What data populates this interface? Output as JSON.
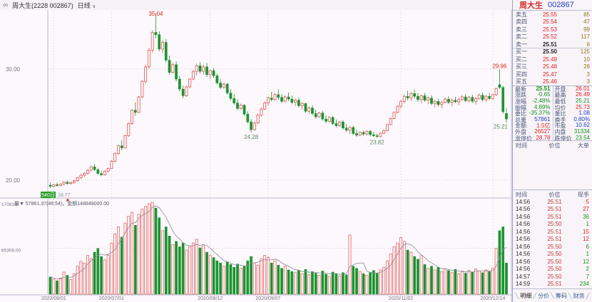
{
  "title_bar": {
    "logo_glyph": "∞",
    "title": "周大生(2228 002867)",
    "period": "日线",
    "caret": "∨"
  },
  "panel": {
    "stock_name": "周大生",
    "stock_code": "002867",
    "asks": [
      {
        "label": "卖五",
        "price": "25.55",
        "vol": "85",
        "pc": "r"
      },
      {
        "label": "卖四",
        "price": "25.54",
        "vol": "47",
        "pc": "r"
      },
      {
        "label": "卖三",
        "price": "25.53",
        "vol": "99",
        "pc": "r"
      },
      {
        "label": "卖二",
        "price": "25.52",
        "vol": "117",
        "pc": "r"
      },
      {
        "label": "卖一",
        "price": "25.51",
        "vol": "6",
        "pc": "k"
      }
    ],
    "bids": [
      {
        "label": "买一",
        "price": "25.50",
        "vol": "125",
        "pc": "k"
      },
      {
        "label": "买二",
        "price": "25.49",
        "vol": "10",
        "pc": "r"
      },
      {
        "label": "买三",
        "price": "25.48",
        "vol": "28",
        "pc": "r"
      },
      {
        "label": "买四",
        "price": "25.47",
        "vol": "3",
        "pc": "r"
      },
      {
        "label": "买五",
        "price": "25.46",
        "vol": "3",
        "pc": "r"
      }
    ],
    "info": [
      {
        "l": "最新",
        "v": "25.51",
        "c": "g bold",
        "l2": "开盘",
        "v2": "26.01",
        "c2": "r"
      },
      {
        "l": "涨跌",
        "v": "-0.65",
        "c": "g",
        "l2": "最高",
        "v2": "26.49",
        "c2": "r"
      },
      {
        "l": "涨幅",
        "v": "-2.48%",
        "c": "g",
        "l2": "最低",
        "v2": "25.21",
        "c2": "g"
      },
      {
        "l": "振幅",
        "v": "4.89%",
        "c": "g",
        "l2": "均价",
        "v2": "25.73",
        "c2": "r"
      },
      {
        "l": "委比",
        "v": "-35.37%",
        "c": "g",
        "l2": "量比",
        "v2": "1.08",
        "c2": "b"
      },
      {
        "l": "总量",
        "v": "57861",
        "c": "b",
        "l2": "换手",
        "v2": "0.80%",
        "c2": "b"
      },
      {
        "l": "金额",
        "v": "1.5亿",
        "c": "r",
        "l2": "市盈",
        "v2": "10.62",
        "c2": "b"
      },
      {
        "l": "外盘",
        "v": "26527",
        "c": "r",
        "l2": "内盘",
        "v2": "31334",
        "c2": "g"
      },
      {
        "l": "涨停价",
        "v": "28.78",
        "c": "r",
        "l2": "跌停价",
        "v2": "23.54",
        "c2": "g"
      }
    ],
    "big_order_header": {
      "c1": "时间",
      "c2": "价位",
      "c3": "大单"
    },
    "tick_header": {
      "c1": "时间",
      "c2": "价位",
      "c3": "现手"
    },
    "ticks": [
      {
        "time": "14:56",
        "price": "25.51",
        "lots": "5",
        "side": "r"
      },
      {
        "time": "14:56",
        "price": "25.51",
        "lots": "27",
        "side": "r"
      },
      {
        "time": "14:56",
        "price": "25.51",
        "lots": "36",
        "side": "g"
      },
      {
        "time": "14:56",
        "price": "25.50",
        "lots": "1",
        "side": "g"
      },
      {
        "time": "14:56",
        "price": "25.51",
        "lots": "15",
        "side": "r"
      },
      {
        "time": "14:56",
        "price": "25.51",
        "lots": "12",
        "side": "r"
      },
      {
        "time": "14:56",
        "price": "25.50",
        "lots": "6",
        "side": "g"
      },
      {
        "time": "14:56",
        "price": "25.50",
        "lots": "1",
        "side": "g"
      },
      {
        "time": "14:56",
        "price": "25.50",
        "lots": "12",
        "side": "g"
      },
      {
        "time": "14:56",
        "price": "25.50",
        "lots": "2",
        "side": "g"
      },
      {
        "time": "14:57",
        "price": "25.50",
        "lots": "7",
        "side": "g"
      },
      {
        "time": "14:59",
        "price": "25.51",
        "lots": "234",
        "side": "g"
      }
    ],
    "tabs": [
      "明细",
      "分价",
      "筹码",
      "财务"
    ]
  },
  "chart": {
    "k_axis_labels": [
      {
        "price": 30,
        "text": "30.00"
      },
      {
        "price": 20,
        "text": "20.00"
      }
    ],
    "vol_axis_labels": [
      {
        "frac": 1.0,
        "text": "170616"
      },
      {
        "frac": 0.5,
        "text": "85308.00"
      }
    ],
    "vol_pane_header": "量▼ 57861.37(46:54)，金额148848000.00",
    "hist_low_badge": "540日",
    "hist_low_value": "18.77",
    "x_axis": [
      {
        "index": 1,
        "label": "2020/06/01"
      },
      {
        "index": 18,
        "label": "2020/07/01"
      },
      {
        "index": 47,
        "label": "2020/08/12"
      },
      {
        "index": 64,
        "label": "2020/09/07"
      },
      {
        "index": 103,
        "label": "2020/11/02"
      },
      {
        "index": 130,
        "label": "2020/12/14"
      }
    ],
    "annotations": [
      {
        "index": 31,
        "text": "35.04",
        "type": "high"
      },
      {
        "index": 132,
        "text": "29.96",
        "type": "high"
      },
      {
        "index": 59,
        "text": "24.28",
        "type": "low"
      },
      {
        "index": 96,
        "text": "23.82",
        "type": "low"
      },
      {
        "index": 134,
        "text": "25.21",
        "type": "low"
      }
    ],
    "colors": {
      "up": "#e05a5a",
      "down": "#1d9331",
      "high_label": "#e02020",
      "low_label": "#5a8a5a",
      "grid": "#dcc3d6",
      "axis_text": "#777788",
      "ma_line": "#8a8a9a",
      "border": "#b9b9cf"
    }
  },
  "chart_data": {
    "type": "candlestick_with_volume",
    "title": "周大生 002867 日线",
    "price_axis": {
      "labeled_ticks": [
        30.0,
        20.0
      ]
    },
    "volume_axis": {
      "labeled_ticks": [
        170616,
        85308
      ]
    },
    "candles": [
      [
        19.55,
        19.8,
        19.3,
        19.45
      ],
      [
        19.45,
        19.65,
        19.35,
        19.6
      ],
      [
        19.6,
        19.78,
        19.42,
        19.52
      ],
      [
        19.52,
        19.72,
        19.45,
        19.66
      ],
      [
        19.66,
        19.92,
        19.55,
        19.82
      ],
      [
        19.82,
        19.96,
        19.6,
        19.7
      ],
      [
        19.7,
        19.88,
        19.58,
        19.8
      ],
      [
        19.8,
        20.05,
        19.68,
        19.95
      ],
      [
        19.95,
        20.3,
        19.88,
        20.22
      ],
      [
        20.22,
        20.55,
        20.1,
        20.45
      ],
      [
        20.45,
        20.72,
        20.3,
        20.62
      ],
      [
        20.62,
        21.0,
        20.5,
        20.9
      ],
      [
        20.9,
        21.3,
        20.8,
        21.2
      ],
      [
        21.2,
        21.45,
        20.85,
        20.95
      ],
      [
        20.95,
        21.1,
        20.5,
        20.6
      ],
      [
        20.6,
        20.85,
        20.35,
        20.48
      ],
      [
        20.48,
        20.9,
        20.42,
        20.82
      ],
      [
        20.82,
        21.15,
        20.7,
        21.05
      ],
      [
        21.05,
        21.8,
        21.0,
        21.7
      ],
      [
        21.7,
        22.5,
        21.6,
        22.4
      ],
      [
        22.4,
        23.2,
        22.3,
        23.1
      ],
      [
        23.1,
        23.6,
        22.7,
        22.9
      ],
      [
        22.9,
        24.1,
        22.85,
        24.0
      ],
      [
        24.0,
        25.2,
        23.9,
        25.1
      ],
      [
        25.1,
        26.4,
        25.0,
        26.3
      ],
      [
        26.3,
        27.0,
        25.8,
        26.1
      ],
      [
        26.1,
        27.6,
        26.05,
        27.5
      ],
      [
        27.5,
        29.0,
        27.4,
        28.9
      ],
      [
        28.9,
        30.4,
        28.7,
        30.2
      ],
      [
        30.2,
        31.9,
        30.0,
        31.7
      ],
      [
        31.7,
        33.5,
        31.5,
        33.3
      ],
      [
        33.3,
        35.04,
        32.8,
        33.1
      ],
      [
        33.1,
        33.4,
        31.6,
        31.8
      ],
      [
        31.8,
        32.6,
        31.4,
        32.4
      ],
      [
        32.4,
        32.7,
        30.6,
        30.8
      ],
      [
        30.8,
        31.2,
        29.5,
        29.7
      ],
      [
        29.7,
        30.6,
        29.6,
        30.4
      ],
      [
        30.4,
        30.7,
        28.9,
        29.1
      ],
      [
        29.1,
        29.4,
        28.0,
        28.2
      ],
      [
        28.2,
        28.5,
        27.4,
        27.6
      ],
      [
        27.6,
        28.5,
        27.5,
        28.4
      ],
      [
        28.4,
        29.2,
        28.3,
        29.1
      ],
      [
        29.1,
        29.9,
        29.0,
        29.8
      ],
      [
        29.8,
        30.5,
        29.4,
        30.3
      ],
      [
        30.3,
        30.6,
        29.6,
        29.8
      ],
      [
        29.8,
        30.4,
        29.5,
        30.2
      ],
      [
        30.2,
        30.55,
        29.3,
        29.5
      ],
      [
        29.5,
        29.95,
        29.1,
        29.85
      ],
      [
        29.85,
        30.1,
        29.2,
        29.4
      ],
      [
        29.4,
        29.6,
        28.6,
        28.75
      ],
      [
        28.75,
        29.1,
        28.2,
        28.35
      ],
      [
        28.35,
        28.8,
        28.25,
        28.65
      ],
      [
        28.65,
        28.75,
        27.7,
        27.85
      ],
      [
        27.85,
        28.2,
        27.2,
        27.35
      ],
      [
        27.35,
        27.75,
        26.8,
        26.95
      ],
      [
        26.95,
        27.3,
        26.3,
        26.45
      ],
      [
        26.45,
        26.9,
        26.35,
        26.75
      ],
      [
        26.75,
        26.85,
        25.8,
        25.95
      ],
      [
        25.95,
        26.2,
        25.1,
        25.25
      ],
      [
        25.25,
        25.5,
        24.28,
        24.55
      ],
      [
        24.55,
        25.3,
        24.45,
        25.15
      ],
      [
        25.15,
        26.0,
        25.05,
        25.85
      ],
      [
        25.85,
        26.55,
        25.75,
        26.4
      ],
      [
        26.4,
        27.1,
        26.3,
        26.95
      ],
      [
        26.95,
        27.55,
        26.7,
        27.4
      ],
      [
        27.4,
        27.95,
        27.1,
        27.25
      ],
      [
        27.25,
        27.85,
        27.15,
        27.7
      ],
      [
        27.7,
        28.15,
        27.25,
        27.45
      ],
      [
        27.45,
        27.75,
        26.95,
        27.1
      ],
      [
        27.1,
        27.65,
        27.0,
        27.5
      ],
      [
        27.5,
        27.9,
        27.15,
        27.3
      ],
      [
        27.3,
        27.6,
        26.85,
        27.0
      ],
      [
        27.0,
        27.35,
        26.65,
        27.2
      ],
      [
        27.2,
        27.45,
        26.55,
        26.7
      ],
      [
        26.7,
        27.05,
        26.35,
        26.9
      ],
      [
        26.9,
        26.95,
        26.05,
        26.2
      ],
      [
        26.2,
        26.65,
        25.95,
        26.5
      ],
      [
        26.5,
        26.75,
        25.85,
        26.0
      ],
      [
        26.0,
        26.35,
        25.55,
        25.7
      ],
      [
        25.7,
        26.15,
        25.6,
        26.05
      ],
      [
        26.05,
        26.25,
        25.35,
        25.5
      ],
      [
        25.5,
        25.85,
        25.15,
        25.3
      ],
      [
        25.3,
        25.75,
        25.2,
        25.65
      ],
      [
        25.65,
        25.8,
        24.95,
        25.1
      ],
      [
        25.1,
        25.45,
        24.75,
        24.9
      ],
      [
        24.9,
        25.35,
        24.8,
        25.25
      ],
      [
        25.25,
        25.4,
        24.55,
        24.7
      ],
      [
        24.7,
        25.05,
        24.35,
        24.5
      ],
      [
        24.5,
        24.85,
        24.15,
        24.75
      ],
      [
        24.75,
        24.9,
        24.05,
        24.2
      ],
      [
        24.2,
        24.55,
        23.9,
        24.05
      ],
      [
        24.05,
        24.4,
        23.95,
        24.3
      ],
      [
        24.3,
        24.45,
        24.0,
        24.15
      ],
      [
        24.15,
        24.5,
        24.05,
        24.4
      ],
      [
        24.4,
        24.55,
        23.95,
        24.1
      ],
      [
        24.1,
        24.35,
        23.9,
        24.0
      ],
      [
        24.0,
        24.2,
        23.82,
        23.92
      ],
      [
        23.92,
        24.3,
        23.88,
        24.22
      ],
      [
        24.22,
        24.6,
        24.15,
        24.45
      ],
      [
        24.45,
        25.1,
        24.4,
        25.0
      ],
      [
        25.0,
        25.65,
        24.95,
        25.55
      ],
      [
        25.55,
        26.2,
        25.5,
        26.1
      ],
      [
        26.1,
        26.75,
        26.0,
        26.65
      ],
      [
        26.65,
        27.25,
        26.45,
        27.1
      ],
      [
        27.1,
        27.7,
        26.9,
        27.55
      ],
      [
        27.55,
        28.05,
        27.2,
        27.4
      ],
      [
        27.4,
        27.95,
        27.15,
        27.8
      ],
      [
        27.8,
        28.15,
        27.35,
        27.55
      ],
      [
        27.55,
        27.85,
        27.05,
        27.25
      ],
      [
        27.25,
        27.7,
        26.95,
        27.6
      ],
      [
        27.6,
        27.85,
        27.05,
        27.2
      ],
      [
        27.2,
        27.55,
        26.85,
        27.4
      ],
      [
        27.4,
        27.65,
        26.75,
        26.9
      ],
      [
        26.9,
        27.25,
        26.55,
        27.1
      ],
      [
        27.1,
        27.35,
        26.65,
        26.8
      ],
      [
        26.8,
        27.15,
        26.45,
        27.0
      ],
      [
        27.0,
        27.45,
        26.9,
        27.3
      ],
      [
        27.3,
        27.55,
        26.85,
        27.0
      ],
      [
        27.0,
        27.35,
        26.65,
        27.2
      ],
      [
        27.2,
        27.5,
        26.95,
        27.05
      ],
      [
        27.05,
        27.4,
        26.75,
        27.25
      ],
      [
        27.25,
        27.65,
        27.15,
        27.5
      ],
      [
        27.5,
        27.75,
        27.05,
        27.15
      ],
      [
        27.15,
        27.6,
        27.0,
        27.45
      ],
      [
        27.45,
        27.7,
        26.95,
        27.1
      ],
      [
        27.1,
        27.5,
        26.8,
        27.35
      ],
      [
        27.35,
        27.8,
        27.25,
        27.65
      ],
      [
        27.65,
        27.9,
        27.1,
        27.25
      ],
      [
        27.25,
        27.7,
        27.05,
        27.55
      ],
      [
        27.55,
        27.85,
        27.2,
        27.35
      ],
      [
        27.35,
        27.8,
        27.25,
        27.7
      ],
      [
        27.7,
        28.35,
        27.55,
        28.25
      ],
      [
        28.6,
        29.96,
        28.2,
        28.35
      ],
      [
        28.35,
        28.5,
        26.0,
        26.16
      ],
      [
        26.01,
        26.49,
        25.21,
        25.51
      ]
    ],
    "volumes": [
      32000,
      28000,
      25000,
      30000,
      41000,
      35000,
      27000,
      38000,
      52000,
      61000,
      58000,
      72000,
      66000,
      78000,
      85000,
      70000,
      64000,
      72000,
      95000,
      112000,
      125000,
      106000,
      132000,
      145000,
      152000,
      128000,
      148000,
      158000,
      163000,
      168000,
      170616,
      160000,
      142000,
      118000,
      125000,
      108000,
      92000,
      98000,
      88000,
      95000,
      82000,
      88000,
      95000,
      102000,
      86000,
      90000,
      78000,
      72000,
      68000,
      62000,
      58000,
      52000,
      60000,
      55000,
      50000,
      56000,
      48000,
      52000,
      62000,
      70000,
      58000,
      54000,
      66000,
      72000,
      68000,
      58000,
      62000,
      54000,
      48000,
      52000,
      45000,
      42000,
      40000,
      44000,
      38000,
      46000,
      36000,
      42000,
      39000,
      35000,
      43000,
      37000,
      33000,
      41000,
      38000,
      34000,
      40000,
      36000,
      110000,
      52000,
      48000,
      42000,
      38000,
      35000,
      40000,
      44000,
      39000,
      45000,
      50000,
      62000,
      75000,
      88000,
      95000,
      105000,
      98000,
      82000,
      78000,
      70000,
      65000,
      72000,
      55000,
      48000,
      52000,
      45000,
      50000,
      42000,
      47000,
      44000,
      40000,
      46000,
      38000,
      43000,
      39000,
      44000,
      41000,
      47000,
      43000,
      40000,
      45000,
      42000,
      48000,
      85000,
      118000,
      125000,
      57861
    ]
  }
}
